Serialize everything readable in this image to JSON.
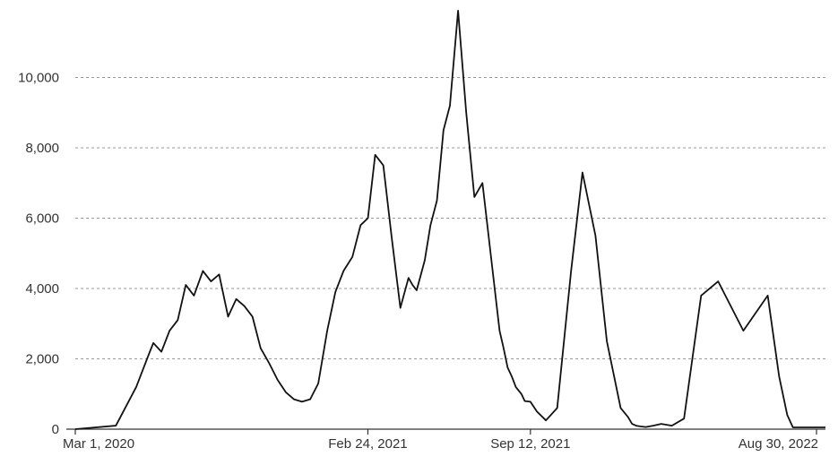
{
  "chart_data": {
    "type": "line",
    "title": "",
    "xlabel": "",
    "ylabel": "",
    "x_tick_labels": [
      "Mar 1, 2020",
      "Feb 24, 2021",
      "Sep 12, 2021",
      "Aug 30, 2022"
    ],
    "y_tick_labels": [
      "0",
      "2,000",
      "4,000",
      "6,000",
      "8,000",
      "10,000"
    ],
    "x_ticks": [
      "2020-03-01",
      "2021-02-24",
      "2021-09-12",
      "2022-08-30"
    ],
    "y_ticks": [
      0,
      2000,
      4000,
      6000,
      8000,
      10000
    ],
    "xlim": [
      "2020-03-01",
      "2022-09-10"
    ],
    "ylim": [
      0,
      12000
    ],
    "grid": true,
    "line_color": "#111111",
    "series": [
      {
        "x": [
          "2020-03-01",
          "2020-04-20",
          "2020-05-15",
          "2020-05-30",
          "2020-06-05",
          "2020-06-15",
          "2020-06-25",
          "2020-07-05",
          "2020-07-15",
          "2020-07-25",
          "2020-08-05",
          "2020-08-15",
          "2020-08-25",
          "2020-09-05",
          "2020-09-15",
          "2020-09-25",
          "2020-10-05",
          "2020-10-15",
          "2020-10-25",
          "2020-11-05",
          "2020-11-15",
          "2020-11-25",
          "2020-12-05",
          "2020-12-15",
          "2020-12-25",
          "2021-01-05",
          "2021-01-15",
          "2021-01-25",
          "2021-02-05",
          "2021-02-15",
          "2021-02-24",
          "2021-03-05",
          "2021-03-15",
          "2021-03-25",
          "2021-04-05",
          "2021-04-15",
          "2021-04-20",
          "2021-04-25",
          "2021-05-05",
          "2021-05-12",
          "2021-05-20",
          "2021-05-28",
          "2021-06-05",
          "2021-06-15",
          "2021-06-25",
          "2021-07-05",
          "2021-07-15",
          "2021-07-25",
          "2021-08-05",
          "2021-08-10",
          "2021-08-15",
          "2021-08-20",
          "2021-08-25",
          "2021-09-01",
          "2021-09-05",
          "2021-09-12",
          "2021-09-20",
          "2021-10-01",
          "2021-10-15",
          "2021-11-01",
          "2021-11-15",
          "2021-12-01",
          "2021-12-15",
          "2022-01-01",
          "2022-01-10",
          "2022-01-15",
          "2022-01-20",
          "2022-01-25",
          "2022-02-01",
          "2022-02-10",
          "2022-02-20",
          "2022-03-05",
          "2022-03-20",
          "2022-04-10",
          "2022-05-01",
          "2022-06-01",
          "2022-07-01",
          "2022-07-15",
          "2022-07-25",
          "2022-08-01",
          "2022-08-05",
          "2022-08-10",
          "2022-08-15",
          "2022-08-20",
          "2022-08-25",
          "2022-08-30",
          "2022-09-05",
          "2022-09-10"
        ],
        "y": [
          0,
          100,
          1200,
          2100,
          2450,
          2200,
          2800,
          3100,
          4100,
          3800,
          4500,
          4200,
          4400,
          3200,
          3700,
          3500,
          3200,
          2300,
          1900,
          1400,
          1050,
          850,
          780,
          850,
          1300,
          2800,
          3900,
          4500,
          4900,
          5800,
          6000,
          7800,
          7500,
          5500,
          3450,
          4300,
          4100,
          3950,
          4800,
          5800,
          6500,
          8500,
          9200,
          11900,
          9000,
          6600,
          7000,
          5000,
          2800,
          2300,
          1750,
          1500,
          1200,
          1000,
          800,
          780,
          500,
          250,
          600,
          4500,
          7300,
          5500,
          2500,
          600,
          350,
          150,
          100,
          80,
          60,
          100,
          150,
          100,
          300,
          3800,
          4200,
          2800,
          3800,
          1500,
          400,
          50,
          50,
          50,
          50,
          50,
          50,
          50,
          50,
          50
        ]
      }
    ]
  }
}
